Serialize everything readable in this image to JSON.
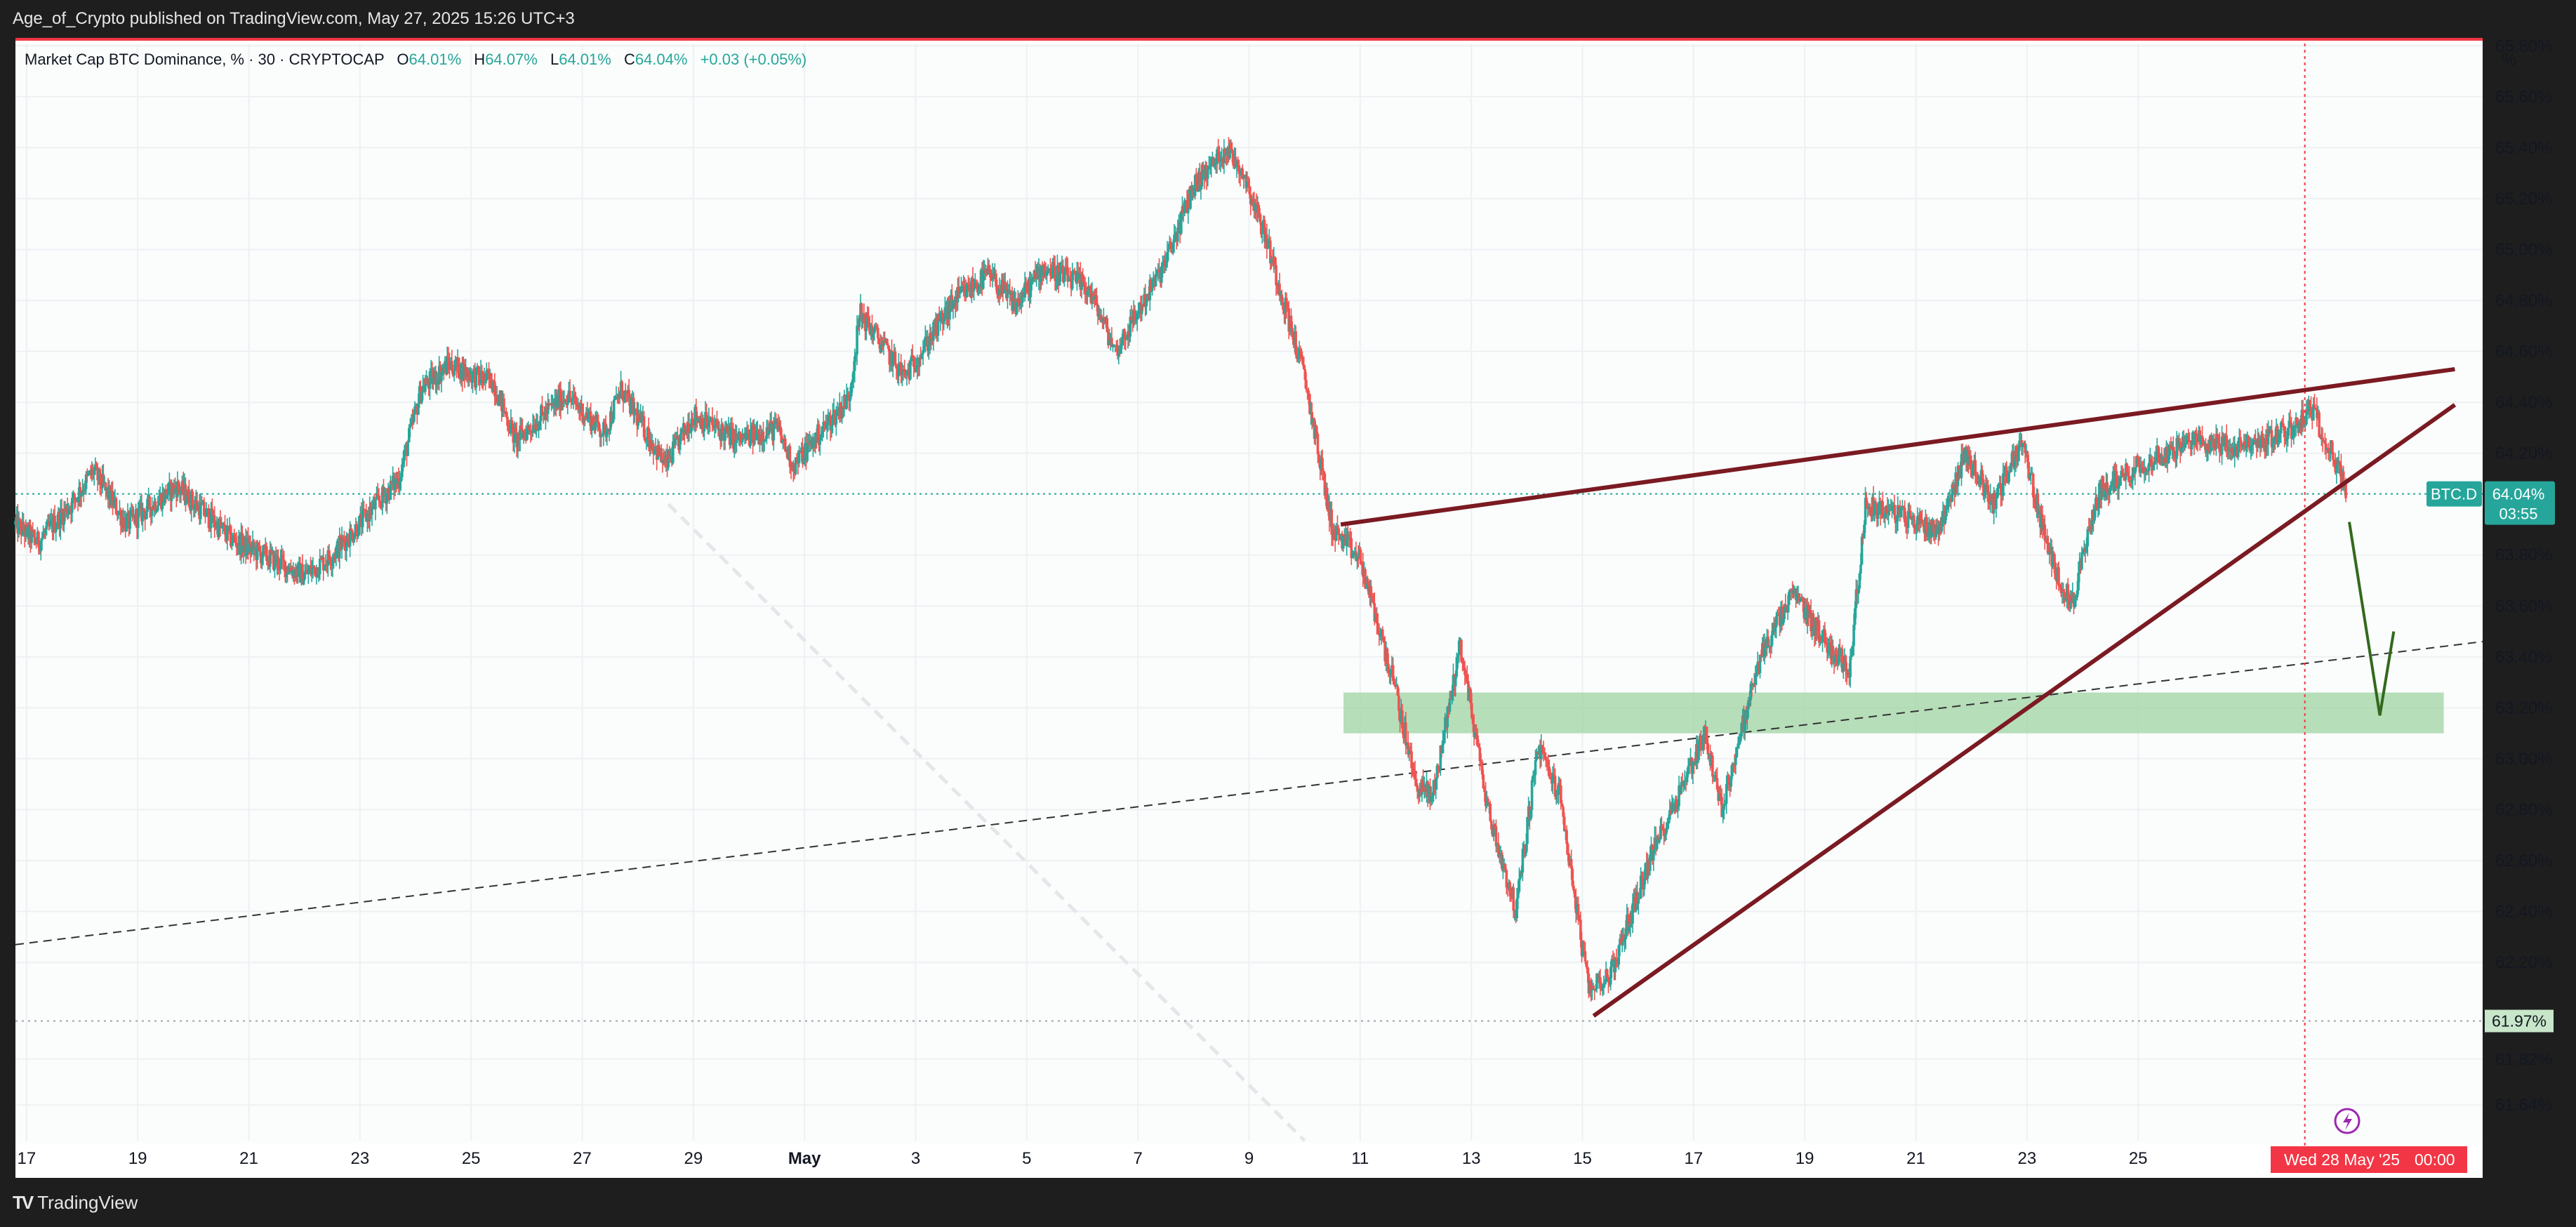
{
  "header": {
    "published": "Age_of_Crypto published on TradingView.com, May 27, 2025 15:26 UTC+3"
  },
  "legend": {
    "symbol": "Market Cap BTC Dominance, % · 30 · CRYPTOCAP",
    "open_label": "O",
    "open": "64.01%",
    "high_label": "H",
    "high": "64.07%",
    "low_label": "L",
    "low": "64.01%",
    "close_label": "C",
    "close": "64.04%",
    "change": "+0.03 (+0.05%)"
  },
  "price_axis": {
    "unit": "%",
    "ticks": [
      "65.80%",
      "65.60%",
      "65.40%",
      "65.20%",
      "65.00%",
      "64.80%",
      "64.60%",
      "64.40%",
      "64.20%",
      "63.80%",
      "63.60%",
      "63.40%",
      "63.20%",
      "63.00%",
      "62.80%",
      "62.60%",
      "62.40%",
      "62.20%",
      "61.82%",
      "61.64%"
    ],
    "current_symbol": "BTC.D",
    "current_price": "64.04%",
    "countdown": "03:55",
    "marked_level": "61.97%"
  },
  "time_axis": {
    "ticks": [
      "17",
      "19",
      "21",
      "23",
      "25",
      "27",
      "29",
      "May",
      "3",
      "5",
      "7",
      "9",
      "11",
      "13",
      "15",
      "17",
      "19",
      "21",
      "23",
      "25"
    ],
    "crosshair_label": "Wed 28 May '25",
    "crosshair_time": "00:00"
  },
  "footer": {
    "brand": "TradingView"
  },
  "colors": {
    "up": "#26a69a",
    "down": "#ef5350",
    "wedge": "#7b1a22",
    "zone": "#a5d6a7",
    "arrow": "#33691e",
    "accent_red": "#f23645"
  },
  "chart_data": {
    "type": "candlestick",
    "symbol": "BTC.D",
    "interval_minutes": 30,
    "x_domain_days": [
      -14.2,
      30.2
    ],
    "y_domain": [
      61.5,
      65.82
    ],
    "key_points": [
      {
        "day": -14.2,
        "close": 63.92
      },
      {
        "day": -13.8,
        "close": 63.85
      },
      {
        "day": -13.2,
        "close": 64.0
      },
      {
        "day": -12.8,
        "close": 64.13
      },
      {
        "day": -12.2,
        "close": 63.92
      },
      {
        "day": -11.3,
        "close": 64.07
      },
      {
        "day": -10.3,
        "close": 63.86
      },
      {
        "day": -9.0,
        "close": 63.72
      },
      {
        "day": -8.5,
        "close": 63.8
      },
      {
        "day": -7.9,
        "close": 63.95
      },
      {
        "day": -7.3,
        "close": 64.1
      },
      {
        "day": -6.9,
        "close": 64.45
      },
      {
        "day": -6.4,
        "close": 64.55
      },
      {
        "day": -5.9,
        "close": 64.5
      },
      {
        "day": -5.6,
        "close": 64.48
      },
      {
        "day": -5.2,
        "close": 64.25
      },
      {
        "day": -4.3,
        "close": 64.43
      },
      {
        "day": -3.6,
        "close": 64.28
      },
      {
        "day": -3.3,
        "close": 64.45
      },
      {
        "day": -2.5,
        "close": 64.15
      },
      {
        "day": -2.0,
        "close": 64.35
      },
      {
        "day": -1.2,
        "close": 64.25
      },
      {
        "day": -0.5,
        "close": 64.3
      },
      {
        "day": -0.2,
        "close": 64.15
      },
      {
        "day": 0.8,
        "close": 64.42
      },
      {
        "day": 1.0,
        "close": 64.75
      },
      {
        "day": 1.8,
        "close": 64.5
      },
      {
        "day": 2.7,
        "close": 64.8
      },
      {
        "day": 3.3,
        "close": 64.9
      },
      {
        "day": 3.8,
        "close": 64.78
      },
      {
        "day": 4.3,
        "close": 64.93
      },
      {
        "day": 5.1,
        "close": 64.85
      },
      {
        "day": 5.6,
        "close": 64.6
      },
      {
        "day": 6.5,
        "close": 64.95
      },
      {
        "day": 7.0,
        "close": 65.25
      },
      {
        "day": 7.6,
        "close": 65.4
      },
      {
        "day": 7.9,
        "close": 65.3
      },
      {
        "day": 8.3,
        "close": 65.05
      },
      {
        "day": 9.0,
        "close": 64.5
      },
      {
        "day": 9.5,
        "close": 63.9
      },
      {
        "day": 10.0,
        "close": 63.78
      },
      {
        "day": 10.6,
        "close": 63.3
      },
      {
        "day": 11.0,
        "close": 62.9
      },
      {
        "day": 11.3,
        "close": 62.85
      },
      {
        "day": 11.8,
        "close": 63.45
      },
      {
        "day": 12.3,
        "close": 62.8
      },
      {
        "day": 12.8,
        "close": 62.4
      },
      {
        "day": 13.2,
        "close": 63.05
      },
      {
        "day": 13.6,
        "close": 62.85
      },
      {
        "day": 14.1,
        "close": 62.1
      },
      {
        "day": 14.5,
        "close": 62.15
      },
      {
        "day": 15.2,
        "close": 62.6
      },
      {
        "day": 15.9,
        "close": 62.95
      },
      {
        "day": 16.2,
        "close": 63.1
      },
      {
        "day": 16.5,
        "close": 62.8
      },
      {
        "day": 17.2,
        "close": 63.4
      },
      {
        "day": 17.8,
        "close": 63.65
      },
      {
        "day": 18.4,
        "close": 63.45
      },
      {
        "day": 18.8,
        "close": 63.35
      },
      {
        "day": 19.1,
        "close": 64.0
      },
      {
        "day": 19.8,
        "close": 63.95
      },
      {
        "day": 20.4,
        "close": 63.9
      },
      {
        "day": 20.9,
        "close": 64.2
      },
      {
        "day": 21.4,
        "close": 64.0
      },
      {
        "day": 21.9,
        "close": 64.25
      },
      {
        "day": 22.4,
        "close": 63.8
      },
      {
        "day": 22.8,
        "close": 63.6
      },
      {
        "day": 23.3,
        "close": 64.05
      },
      {
        "day": 24.0,
        "close": 64.15
      },
      {
        "day": 24.5,
        "close": 64.2
      },
      {
        "day": 25.1,
        "close": 64.25
      },
      {
        "day": 25.8,
        "close": 64.22
      },
      {
        "day": 26.3,
        "close": 64.25
      },
      {
        "day": 26.8,
        "close": 64.3
      },
      {
        "day": 27.1,
        "close": 64.38
      },
      {
        "day": 27.5,
        "close": 64.2
      },
      {
        "day": 27.75,
        "close": 64.04
      }
    ],
    "drawings": {
      "wedge_upper": [
        {
          "day": 9.65,
          "price": 63.92
        },
        {
          "day": 29.7,
          "price": 64.53
        }
      ],
      "wedge_lower": [
        {
          "day": 14.2,
          "price": 61.99
        },
        {
          "day": 29.7,
          "price": 64.39
        }
      ],
      "dashed_trend": [
        {
          "day": -14.2,
          "price": 62.27
        },
        {
          "day": 30.2,
          "price": 63.46
        }
      ],
      "support_zone": {
        "day_from": 9.7,
        "day_to": 29.5,
        "price_low": 63.1,
        "price_high": 63.26
      },
      "projection": [
        {
          "day": 27.8,
          "price": 63.93
        },
        {
          "day": 28.35,
          "price": 63.17
        },
        {
          "day": 28.6,
          "price": 63.5
        }
      ]
    }
  }
}
